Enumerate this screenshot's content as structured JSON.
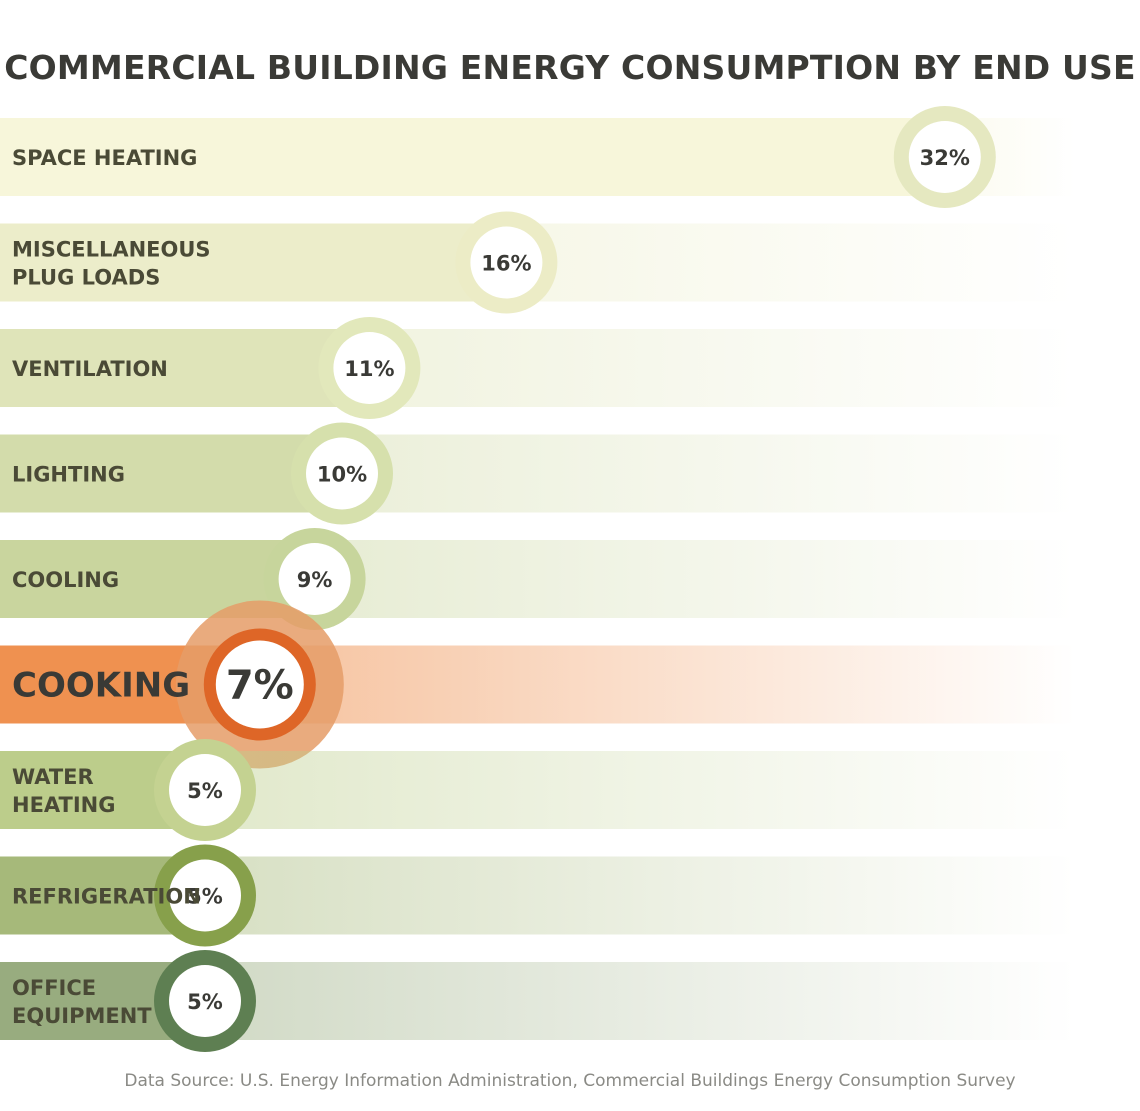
{
  "chart_data": {
    "type": "bar",
    "title": "COMMERCIAL BUILDING ENERGY CONSUMPTION BY END USE",
    "categories": [
      [
        "SPACE HEATING"
      ],
      [
        "MISCELLANEOUS",
        "PLUG LOADS"
      ],
      [
        "VENTILATION"
      ],
      [
        "LIGHTING"
      ],
      [
        "COOLING"
      ],
      [
        "COOKING"
      ],
      [
        "WATER",
        "HEATING"
      ],
      [
        "REFRIGERATION"
      ],
      [
        "OFFICE",
        "EQUIPMENT"
      ]
    ],
    "values": [
      32,
      16,
      11,
      10,
      9,
      7,
      5,
      5,
      5
    ],
    "value_labels": [
      "32%",
      "16%",
      "11%",
      "10%",
      "9%",
      "7%",
      "5%",
      "5%",
      "5%"
    ],
    "highlight": "COOKING",
    "colors": [
      "#f7f6da",
      "#ecedca",
      "#dfe4b9",
      "#d3dcab",
      "#c9d59e",
      "#ef9150",
      "#bccd8b",
      "#a6b97a",
      "#98ac7f"
    ],
    "ring_colors": [
      "#e5e8c0",
      "#ececc6",
      "#e2e8bb",
      "#d6e0ac",
      "#c7d59c",
      "#de6627",
      "#c4d291",
      "#87a04b",
      "#5e7f52"
    ],
    "halo_color": "#e59c67",
    "xlabel": "",
    "ylabel": "",
    "source": "Data Source: U.S. Energy Information Administration, Commercial Buildings Energy Consumption Survey"
  }
}
